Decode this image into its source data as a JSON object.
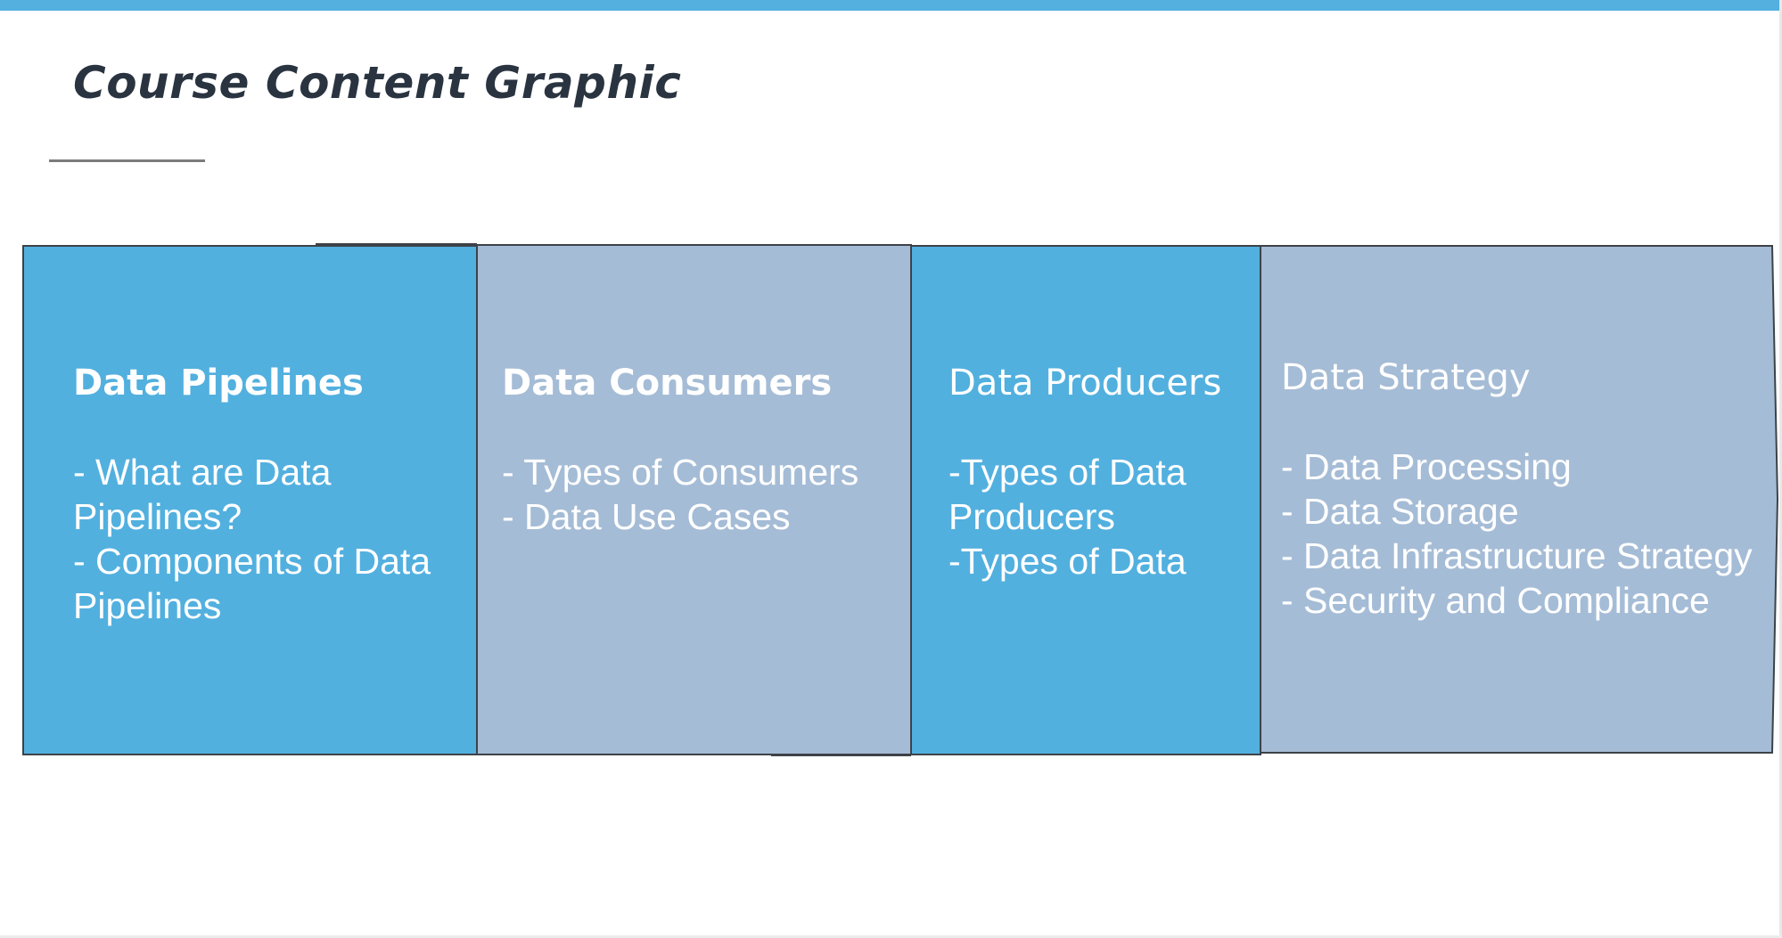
{
  "title": "Course Content Graphic",
  "colors": {
    "accent_bar": "#53b0df",
    "title_text": "#2a3441",
    "panel_blue": "#52b0df",
    "panel_gray": "#a5bcd6",
    "panel_border": "#3d4247"
  },
  "panels": [
    {
      "heading": "Data Pipelines",
      "color": "blue",
      "lines": [
        "- What are Data",
        "Pipelines?",
        "- Components of Data",
        "Pipelines"
      ]
    },
    {
      "heading": "Data Consumers",
      "color": "gray",
      "lines": [
        "- Types of Consumers",
        "- Data Use Cases"
      ]
    },
    {
      "heading": "Data Producers",
      "color": "blue",
      "lines": [
        "-Types of Data",
        "Producers",
        "-Types of Data"
      ]
    },
    {
      "heading": "Data Strategy",
      "color": "gray",
      "lines": [
        "- Data Processing",
        "- Data Storage",
        "- Data Infrastructure Strategy",
        "- Security and Compliance"
      ]
    }
  ]
}
